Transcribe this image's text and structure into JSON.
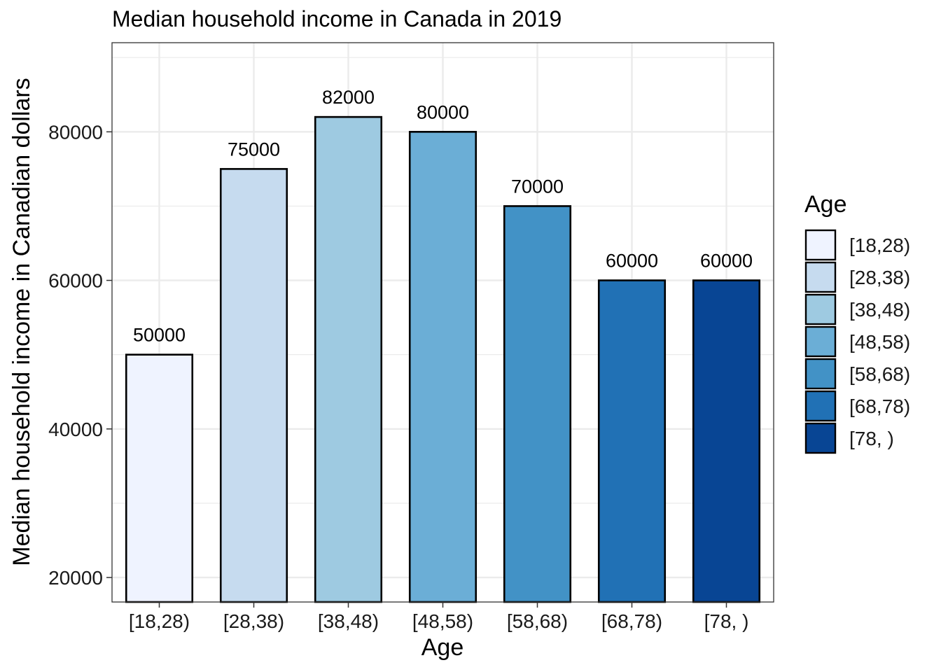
{
  "chart_data": {
    "type": "bar",
    "title": "Median household income in Canada in 2019",
    "xlabel": "Age",
    "ylabel": "Median household income in Canadian dollars",
    "categories": [
      "[18,28)",
      "[28,38)",
      "[38,48)",
      "[48,58)",
      "[58,68)",
      "[68,78)",
      "[78, )"
    ],
    "values": [
      50000,
      75000,
      82000,
      80000,
      70000,
      60000,
      60000
    ],
    "data_labels": [
      "50000",
      "75000",
      "82000",
      "80000",
      "70000",
      "60000",
      "60000"
    ],
    "colors": [
      "#eff3ff",
      "#c6dbef",
      "#9ecae1",
      "#6baed6",
      "#4292c6",
      "#2171b5",
      "#084594"
    ],
    "ylim": [
      16700,
      92000
    ],
    "yticks": [
      20000,
      40000,
      60000,
      80000
    ],
    "ytick_labels": [
      "20000",
      "40000",
      "60000",
      "80000"
    ],
    "grid": true,
    "legend": {
      "title": "Age",
      "placement": "right",
      "entries": [
        "[18,28)",
        "[28,38)",
        "[38,48)",
        "[48,58)",
        "[58,68)",
        "[68,78)",
        "[78, )"
      ]
    }
  }
}
